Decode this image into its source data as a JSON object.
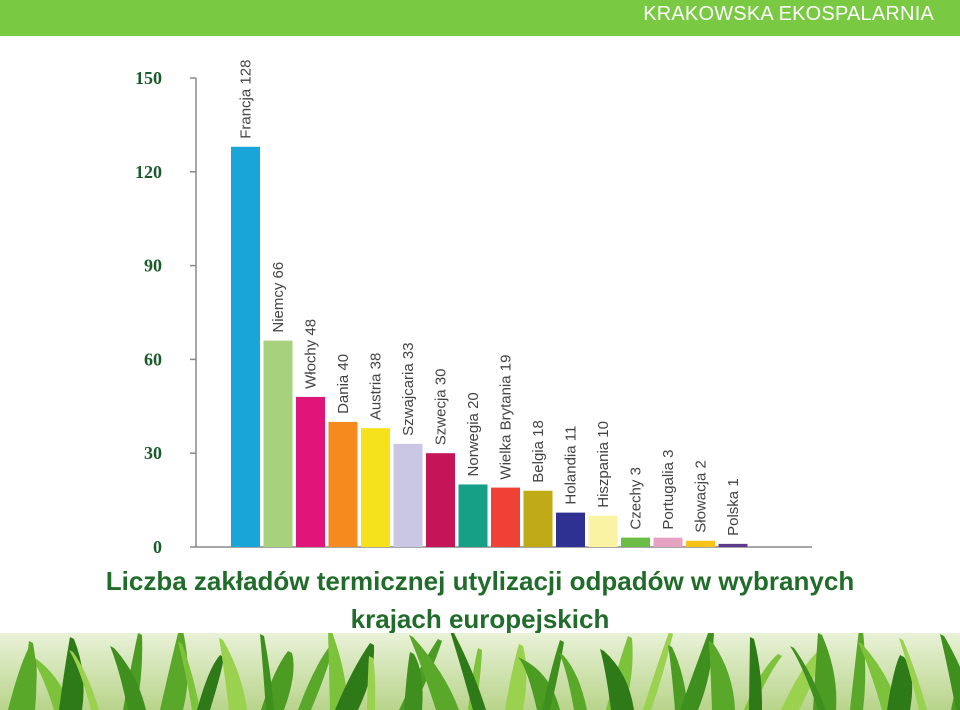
{
  "header": {
    "brand": "KRAKOWSKA EKOSPALARNIA"
  },
  "caption": {
    "line1": "Liczba zakładów termicznej utylizacji odpadów w wybranych",
    "line2": "krajach europejskich"
  },
  "colors": {
    "header_bg": "#7ac943",
    "caption_text": "#216c2a",
    "axis": "#888888"
  },
  "chart_data": {
    "type": "bar",
    "categories": [
      "Francja",
      "Niemcy",
      "Włochy",
      "Dania",
      "Austria",
      "Szwajcaria",
      "Szwecja",
      "Norwegia",
      "Wielka Brytania",
      "Belgia",
      "Holandia",
      "Hiszpania",
      "Czechy",
      "Portugalia",
      "Słowacja",
      "Polska"
    ],
    "values": [
      128,
      66,
      48,
      40,
      38,
      33,
      30,
      20,
      19,
      18,
      11,
      10,
      3,
      3,
      2,
      1
    ],
    "bar_labels": [
      "Francja 128",
      "Niemcy 66",
      "Włochy 48",
      "Dania 40",
      "Austria 38",
      "Szwajcaria 33",
      "Szwecja 30",
      "Norwegia 20",
      "Wielka Brytania 19",
      "Belgia 18",
      "Holandia 11",
      "Hiszpania 10",
      "Czechy 3",
      "Portugalia 3",
      "Słowacja 2",
      "Polska 1"
    ],
    "colors": [
      "#1aa5d8",
      "#a8d17e",
      "#e0157a",
      "#f58a1f",
      "#f6e21b",
      "#c9c7e3",
      "#c51458",
      "#16a085",
      "#ef4136",
      "#c0aa15",
      "#2e3192",
      "#faf3a3",
      "#6bbd45",
      "#e6a3c1",
      "#f8c21a",
      "#5e3a8c"
    ],
    "yticks": [
      0,
      30,
      60,
      90,
      120,
      150
    ],
    "ylim": [
      0,
      150
    ],
    "xlabel": "",
    "ylabel": "",
    "title": "",
    "grid": false
  }
}
